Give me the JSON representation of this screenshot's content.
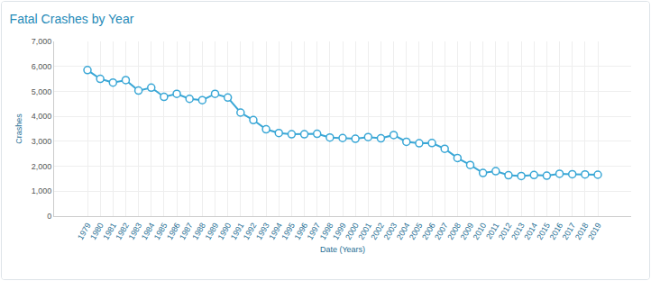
{
  "chart_data": {
    "type": "line",
    "title": "Fatal Crashes by Year",
    "x_label": "Date (Years)",
    "y_label": "Crashes",
    "categories": [
      "1979",
      "1980",
      "1981",
      "1982",
      "1983",
      "1984",
      "1985",
      "1986",
      "1987",
      "1988",
      "1989",
      "1990",
      "1991",
      "1992",
      "1993",
      "1994",
      "1995",
      "1996",
      "1997",
      "1998",
      "1999",
      "2000",
      "2001",
      "2002",
      "2003",
      "2004",
      "2005",
      "2006",
      "2007",
      "2008",
      "2009",
      "2010",
      "2011",
      "2012",
      "2013",
      "2014",
      "2015",
      "2016",
      "2017",
      "2018",
      "2019"
    ],
    "values": [
      5850,
      5500,
      5350,
      5450,
      5030,
      5150,
      4780,
      4900,
      4700,
      4650,
      4900,
      4750,
      4150,
      3850,
      3480,
      3330,
      3280,
      3280,
      3300,
      3150,
      3130,
      3100,
      3170,
      3120,
      3250,
      2980,
      2920,
      2930,
      2700,
      2330,
      2050,
      1730,
      1800,
      1640,
      1610,
      1650,
      1620,
      1700,
      1680,
      1670,
      1660
    ],
    "color": "#3aa7d6",
    "marker": "circle",
    "ylim": [
      0,
      7000
    ],
    "yticks": [
      0,
      {
        "value": 1000,
        "label": "1,000"
      },
      {
        "value": 2000,
        "label": "2,000"
      },
      {
        "value": 3000,
        "label": "3,000"
      },
      {
        "value": 4000,
        "label": "4,000"
      },
      {
        "value": 5000,
        "label": "5,000"
      },
      {
        "value": 6000,
        "label": "6,000"
      },
      {
        "value": 7000,
        "label": "7,000"
      }
    ],
    "grid": true
  }
}
